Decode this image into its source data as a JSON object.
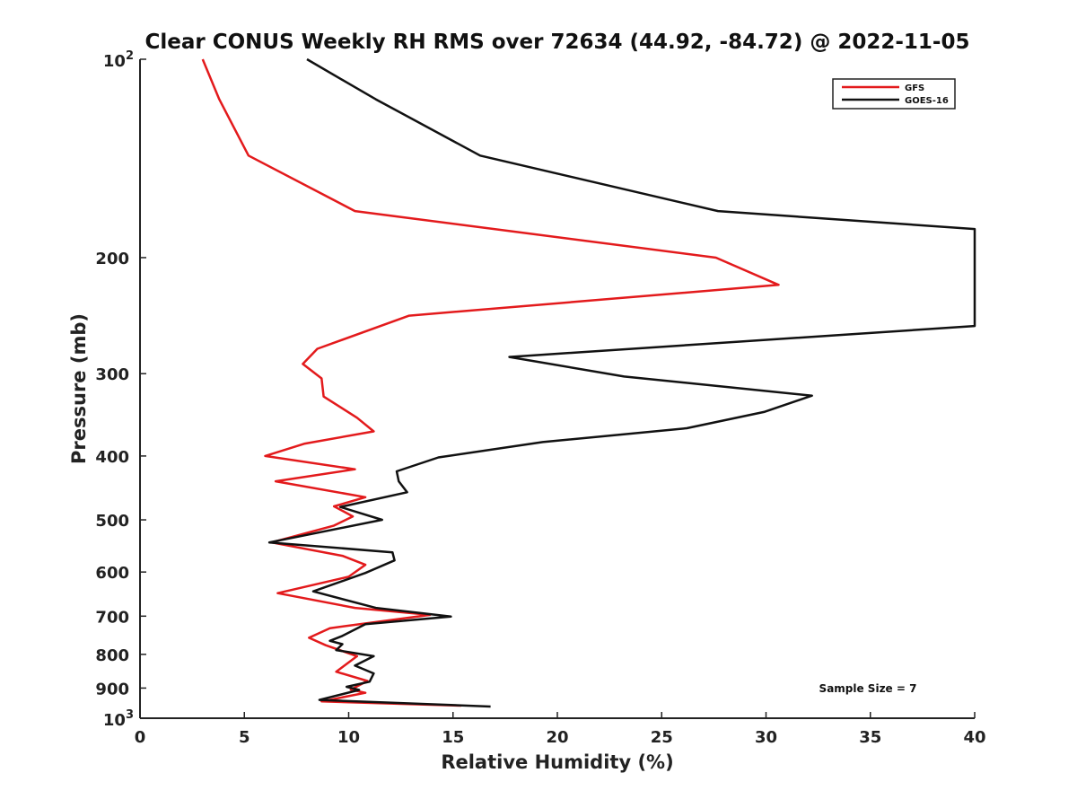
{
  "chart_data": {
    "type": "line",
    "title": "Clear CONUS Weekly RH RMS over 72634 (44.92, -84.72) @ 2022-11-05",
    "xlabel": "Relative Humidity (%)",
    "ylabel": "Pressure (mb)",
    "xlim": [
      0,
      40
    ],
    "ylim": [
      1000,
      100
    ],
    "yscale": "log",
    "xticks": [
      {
        "value": 0,
        "label": "0"
      },
      {
        "value": 5,
        "label": "5"
      },
      {
        "value": 10,
        "label": "10"
      },
      {
        "value": 15,
        "label": "15"
      },
      {
        "value": 20,
        "label": "20"
      },
      {
        "value": 25,
        "label": "25"
      },
      {
        "value": 30,
        "label": "30"
      },
      {
        "value": 35,
        "label": "35"
      },
      {
        "value": 40,
        "label": "40"
      }
    ],
    "yticks": [
      {
        "value": 100,
        "base": "10",
        "exp": "2"
      },
      {
        "value": 200,
        "label": "200"
      },
      {
        "value": 300,
        "label": "300"
      },
      {
        "value": 400,
        "label": "400"
      },
      {
        "value": 500,
        "label": "500"
      },
      {
        "value": 600,
        "label": "600"
      },
      {
        "value": 700,
        "label": "700"
      },
      {
        "value": 800,
        "label": "800"
      },
      {
        "value": 900,
        "label": "900"
      },
      {
        "value": 1000,
        "base": "10",
        "exp": "3"
      }
    ],
    "legend_position": "top-right",
    "annotation": "Sample Size = 7",
    "series": [
      {
        "name": "GFS",
        "color": "#e31a1c",
        "points": [
          [
            3.0,
            100
          ],
          [
            3.8,
            115
          ],
          [
            5.2,
            140
          ],
          [
            10.3,
            170
          ],
          [
            27.6,
            200
          ],
          [
            30.6,
            220
          ],
          [
            12.9,
            245
          ],
          [
            8.5,
            275
          ],
          [
            7.8,
            290
          ],
          [
            8.7,
            305
          ],
          [
            8.8,
            325
          ],
          [
            10.4,
            350
          ],
          [
            11.2,
            367
          ],
          [
            7.9,
            383
          ],
          [
            6.0,
            400
          ],
          [
            10.3,
            419
          ],
          [
            6.5,
            437
          ],
          [
            10.8,
            462
          ],
          [
            9.3,
            477
          ],
          [
            10.2,
            494
          ],
          [
            9.3,
            510
          ],
          [
            6.3,
            541
          ],
          [
            9.7,
            567
          ],
          [
            10.8,
            585
          ],
          [
            10.0,
            610
          ],
          [
            6.6,
            646
          ],
          [
            10.3,
            680
          ],
          [
            13.9,
            697
          ],
          [
            9.1,
            730
          ],
          [
            8.1,
            755
          ],
          [
            8.9,
            775
          ],
          [
            10.4,
            805
          ],
          [
            9.4,
            850
          ],
          [
            10.9,
            878
          ],
          [
            10.1,
            905
          ],
          [
            10.8,
            915
          ],
          [
            8.7,
            943
          ],
          [
            15.4,
            957
          ]
        ]
      },
      {
        "name": "GOES-16",
        "color": "#111111",
        "points": [
          [
            8.0,
            100
          ],
          [
            11.3,
            115
          ],
          [
            16.3,
            140
          ],
          [
            27.7,
            170
          ],
          [
            40.0,
            181
          ],
          [
            40.0,
            254
          ],
          [
            17.7,
            283
          ],
          [
            23.2,
            303
          ],
          [
            32.2,
            324
          ],
          [
            29.9,
            343
          ],
          [
            26.2,
            363
          ],
          [
            19.3,
            381
          ],
          [
            14.3,
            402
          ],
          [
            12.3,
            422
          ],
          [
            12.4,
            437
          ],
          [
            12.8,
            454
          ],
          [
            9.6,
            478
          ],
          [
            11.6,
            500
          ],
          [
            6.2,
            541
          ],
          [
            12.1,
            560
          ],
          [
            12.2,
            576
          ],
          [
            10.8,
            602
          ],
          [
            8.3,
            642
          ],
          [
            11.3,
            680
          ],
          [
            14.9,
            701
          ],
          [
            10.8,
            720
          ],
          [
            9.7,
            750
          ],
          [
            9.1,
            763
          ],
          [
            9.7,
            772
          ],
          [
            9.4,
            788
          ],
          [
            11.2,
            805
          ],
          [
            10.3,
            832
          ],
          [
            11.2,
            855
          ],
          [
            11.0,
            880
          ],
          [
            9.9,
            896
          ],
          [
            10.5,
            906
          ],
          [
            8.6,
            938
          ],
          [
            16.8,
            960
          ]
        ]
      }
    ]
  }
}
